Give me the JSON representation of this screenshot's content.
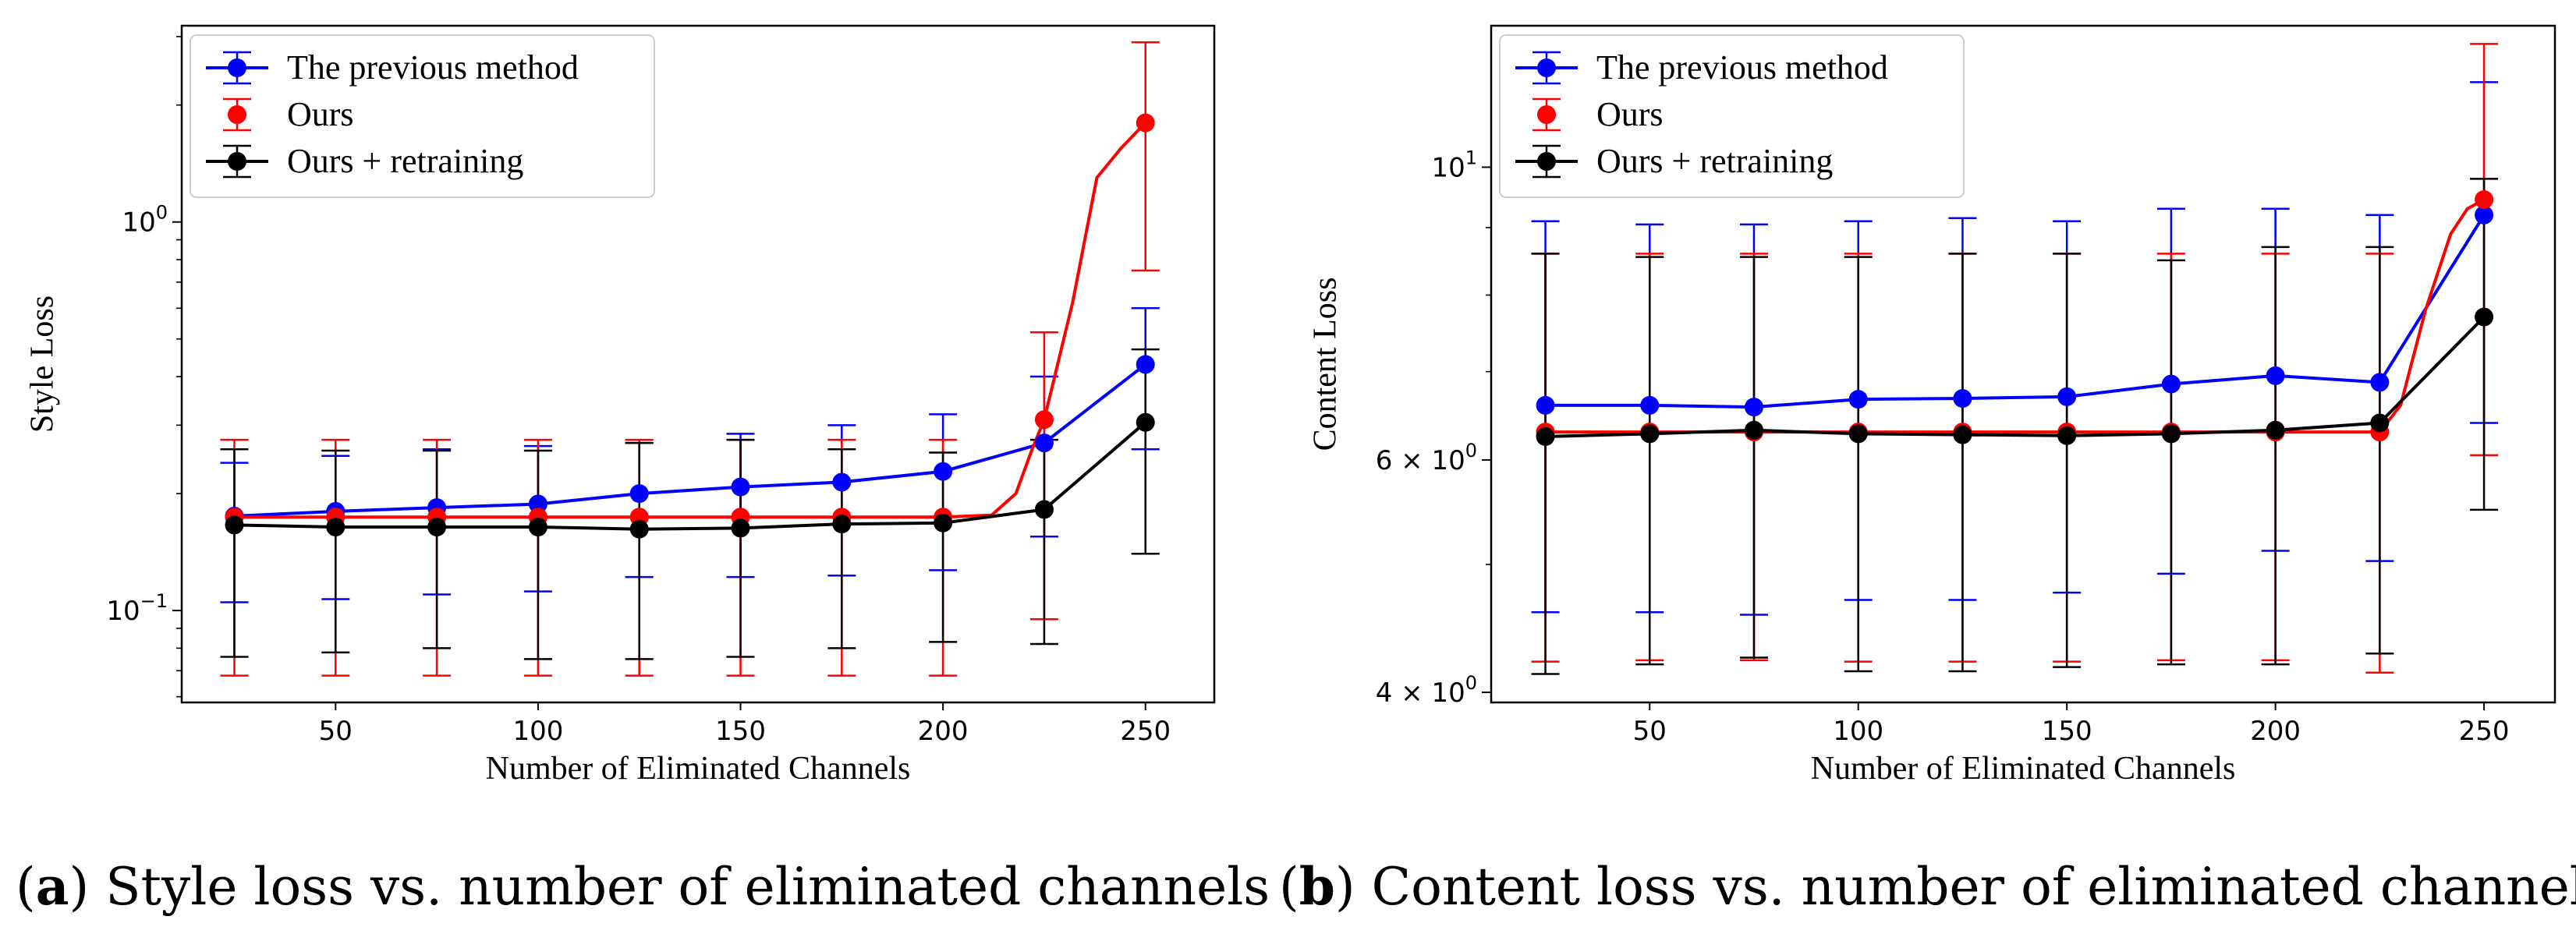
{
  "captions": [
    {
      "letter": "a",
      "text": " Style loss vs. number of eliminated channels"
    },
    {
      "letter": "b",
      "text": " Content loss vs. number of eliminated channels"
    }
  ],
  "colors": {
    "previous": "#0000ff",
    "ours": "#ff0000",
    "retrain": "#000000"
  },
  "chart_data": [
    {
      "type": "line",
      "title": "",
      "xlabel": "Number of Eliminated Channels",
      "ylabel": "Style Loss",
      "yscale": "log",
      "xlim": [
        12,
        267
      ],
      "ylim": [
        0.058,
        3.2
      ],
      "xticks": [
        50,
        100,
        150,
        200,
        250
      ],
      "yticks": [
        {
          "value": 1.0,
          "base": "10",
          "exp": "0"
        },
        {
          "value": 0.1,
          "base": "10",
          "exp": "−1"
        }
      ],
      "legend": {
        "position": "top-left",
        "entries": [
          "The previous method",
          "Ours",
          "Ours + retraining"
        ]
      },
      "series": [
        {
          "name": "The previous method",
          "color": "#0000ff",
          "x": [
            25,
            50,
            75,
            100,
            125,
            150,
            175,
            200,
            225,
            250
          ],
          "y": [
            0.175,
            0.18,
            0.184,
            0.188,
            0.2,
            0.208,
            0.214,
            0.228,
            0.27,
            0.43
          ],
          "ylow": [
            0.105,
            0.107,
            0.11,
            0.112,
            0.122,
            0.122,
            0.123,
            0.127,
            0.155,
            0.26
          ],
          "yhigh": [
            0.24,
            0.25,
            0.26,
            0.265,
            0.27,
            0.285,
            0.3,
            0.32,
            0.4,
            0.6
          ]
        },
        {
          "name": "Ours",
          "color": "#ff0000",
          "x": [
            25,
            50,
            75,
            100,
            125,
            150,
            175,
            200,
            225,
            250
          ],
          "y": [
            0.174,
            0.174,
            0.174,
            0.174,
            0.174,
            0.174,
            0.174,
            0.174,
            0.31,
            1.8
          ],
          "ylow": [
            0.068,
            0.068,
            0.068,
            0.068,
            0.068,
            0.068,
            0.068,
            0.068,
            0.095,
            0.75
          ],
          "yhigh": [
            0.275,
            0.275,
            0.275,
            0.275,
            0.275,
            0.275,
            0.275,
            0.275,
            0.52,
            2.9
          ],
          "curve_x": [
            25,
            50,
            75,
            100,
            125,
            150,
            175,
            200,
            212,
            218,
            222,
            225,
            232,
            238,
            244,
            250
          ],
          "curve_y": [
            0.174,
            0.174,
            0.174,
            0.174,
            0.174,
            0.174,
            0.174,
            0.174,
            0.176,
            0.2,
            0.26,
            0.31,
            0.62,
            1.3,
            1.55,
            1.8
          ]
        },
        {
          "name": "Ours + retraining",
          "color": "#000000",
          "x": [
            25,
            50,
            75,
            100,
            125,
            150,
            175,
            200,
            225,
            250
          ],
          "y": [
            0.166,
            0.164,
            0.164,
            0.164,
            0.162,
            0.163,
            0.167,
            0.168,
            0.182,
            0.305
          ],
          "ylow": [
            0.076,
            0.078,
            0.08,
            0.075,
            0.075,
            0.076,
            0.08,
            0.083,
            0.082,
            0.14
          ],
          "yhigh": [
            0.26,
            0.258,
            0.258,
            0.258,
            0.27,
            0.275,
            0.26,
            0.255,
            0.275,
            0.47
          ]
        }
      ]
    },
    {
      "type": "line",
      "title": "",
      "xlabel": "Number of Eliminated Channels",
      "ylabel": "Content Loss",
      "yscale": "log",
      "xlim": [
        12,
        267
      ],
      "ylim": [
        3.93,
        12.8
      ],
      "xticks": [
        50,
        100,
        150,
        200,
        250
      ],
      "yticks": [
        {
          "value": 10,
          "base": "10",
          "exp": "1"
        },
        {
          "value": 6,
          "base": "6 × 10",
          "exp": "0"
        },
        {
          "value": 4,
          "base": "4 × 10",
          "exp": "0"
        }
      ],
      "legend": {
        "position": "top-left",
        "entries": [
          "The previous method",
          "Ours",
          "Ours + retraining"
        ]
      },
      "series": [
        {
          "name": "The previous method",
          "color": "#0000ff",
          "x": [
            25,
            50,
            75,
            100,
            125,
            150,
            175,
            200,
            225,
            250
          ],
          "y": [
            6.6,
            6.6,
            6.58,
            6.67,
            6.68,
            6.7,
            6.85,
            6.95,
            6.87,
            9.2
          ],
          "ylow": [
            4.6,
            4.6,
            4.58,
            4.7,
            4.7,
            4.76,
            4.92,
            5.12,
            5.03,
            6.4
          ],
          "yhigh": [
            9.1,
            9.05,
            9.05,
            9.1,
            9.15,
            9.1,
            9.3,
            9.3,
            9.2,
            11.6
          ]
        },
        {
          "name": "Ours",
          "color": "#ff0000",
          "x": [
            25,
            50,
            75,
            100,
            125,
            150,
            175,
            200,
            225,
            250
          ],
          "y": [
            6.3,
            6.3,
            6.3,
            6.3,
            6.3,
            6.3,
            6.3,
            6.3,
            6.3,
            9.45
          ],
          "ylow": [
            4.22,
            4.23,
            4.23,
            4.22,
            4.22,
            4.22,
            4.23,
            4.23,
            4.14,
            6.05
          ],
          "yhigh": [
            8.6,
            8.6,
            8.6,
            8.6,
            8.6,
            8.6,
            8.6,
            8.6,
            8.6,
            12.4
          ],
          "curve_x": [
            25,
            50,
            75,
            100,
            125,
            150,
            175,
            200,
            225,
            230,
            236,
            242,
            246,
            250
          ],
          "curve_y": [
            6.3,
            6.3,
            6.3,
            6.3,
            6.3,
            6.3,
            6.3,
            6.3,
            6.3,
            6.6,
            7.8,
            8.9,
            9.3,
            9.45
          ]
        },
        {
          "name": "Ours + retraining",
          "color": "#000000",
          "x": [
            25,
            50,
            75,
            100,
            125,
            150,
            175,
            200,
            225,
            250
          ],
          "y": [
            6.25,
            6.28,
            6.32,
            6.28,
            6.27,
            6.26,
            6.28,
            6.32,
            6.4,
            7.7
          ],
          "ylow": [
            4.13,
            4.2,
            4.25,
            4.15,
            4.15,
            4.18,
            4.2,
            4.2,
            4.28,
            5.5
          ],
          "yhigh": [
            8.6,
            8.55,
            8.55,
            8.55,
            8.6,
            8.6,
            8.5,
            8.7,
            8.7,
            9.8
          ]
        }
      ]
    }
  ]
}
